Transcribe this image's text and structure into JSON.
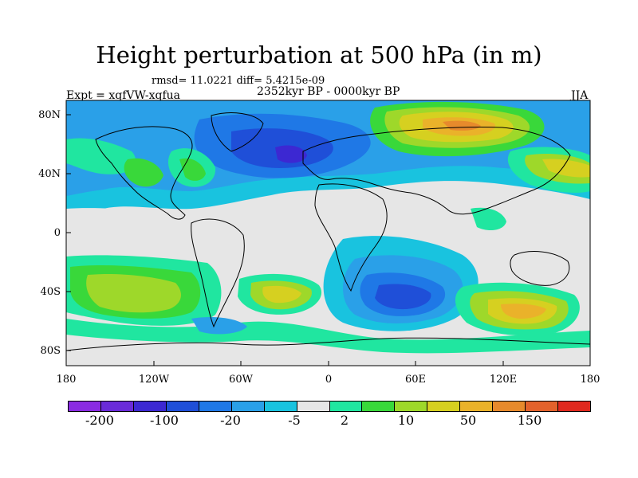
{
  "title": "Height perturbation at 500 hPa (in m)",
  "stats": "rmsd= 11.0221 diff= 5.4215e-09",
  "period": "2352kyr BP - 0000kyr BP",
  "experiment": "Expt = xqfVW-xqfua",
  "season": "JJA",
  "lat_labels": [
    "80N",
    "40N",
    "0",
    "40S",
    "80S"
  ],
  "lon_labels": [
    "180",
    "120W",
    "60W",
    "0",
    "60E",
    "120E",
    "180"
  ],
  "colorbar": {
    "colors": [
      "#8a2be2",
      "#6a2bd9",
      "#3c28d2",
      "#1f4fd8",
      "#1f78e6",
      "#2aa0e8",
      "#19c3df",
      "#e6e6e6",
      "#20e6a0",
      "#39d83a",
      "#9ed82a",
      "#d6d020",
      "#eab22a",
      "#e78a2c",
      "#e3622c",
      "#e0281e"
    ],
    "labels": [
      "-200",
      "-100",
      "-20",
      "-5",
      "2",
      "10",
      "50",
      "150"
    ]
  },
  "map_regions": [
    {
      "name": "north-atlantic-low",
      "color": "#1f4fd8"
    },
    {
      "name": "central-asia-high",
      "color": "#eab22a"
    },
    {
      "name": "south-pacific-high",
      "color": "#9ed82a"
    },
    {
      "name": "south-indian-low",
      "color": "#1f4fd8"
    },
    {
      "name": "tropics-neutral",
      "color": "#e6e6e6"
    }
  ]
}
